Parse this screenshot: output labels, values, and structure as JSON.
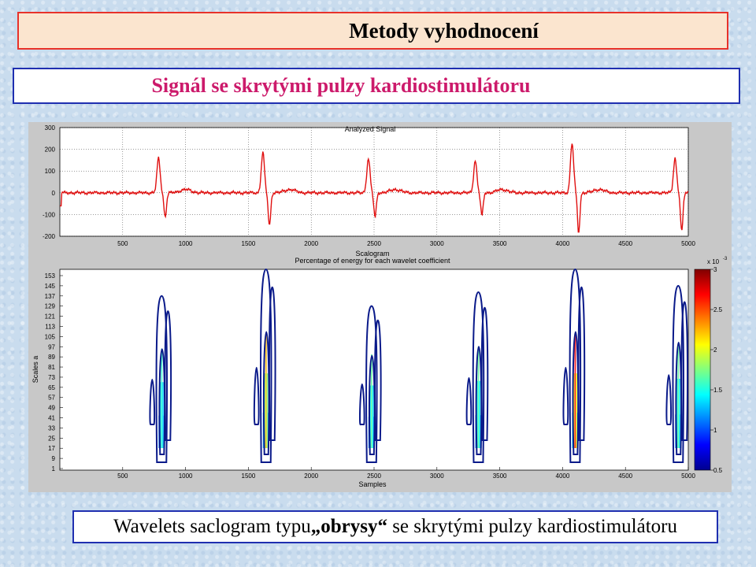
{
  "slide": {
    "title": "Metody vyhodnocení",
    "subtitle": "Signál se skrytými pulzy kardiostimulátoru",
    "caption_part1": "Wavelets saclogram typu ",
    "caption_bold": "„obrysy“",
    "caption_part2": " se skrytými pulzy kardiostimulátoru"
  },
  "chart_data": [
    {
      "type": "line",
      "title": "Analyzed Signal",
      "xlabel": "",
      "ylabel": "",
      "xlim": [
        0,
        5000
      ],
      "ylim": [
        -200,
        300
      ],
      "x_ticks": [
        500,
        1000,
        1500,
        2000,
        2500,
        3000,
        3500,
        4000,
        4500,
        5000
      ],
      "y_ticks": [
        300,
        200,
        100,
        0,
        -100,
        -200
      ],
      "baseline": 0,
      "line_color": "#e01010",
      "beats": [
        {
          "x": 810,
          "peak": 158,
          "trough": -112
        },
        {
          "x": 1640,
          "peak": 185,
          "trough": -152
        },
        {
          "x": 2480,
          "peak": 158,
          "trough": -112
        },
        {
          "x": 3330,
          "peak": 148,
          "trough": -105
        },
        {
          "x": 4100,
          "peak": 228,
          "trough": -185
        },
        {
          "x": 4920,
          "peak": 158,
          "trough": -180
        }
      ]
    },
    {
      "type": "heatmap",
      "title": "Scalogram",
      "subtitle": "Percentage of energy for each wavelet coefficient",
      "xlabel": "Samples",
      "ylabel": "Scales a",
      "xlim": [
        0,
        5000
      ],
      "x_ticks": [
        500,
        1000,
        1500,
        2000,
        2500,
        3000,
        3500,
        4000,
        4500,
        5000
      ],
      "y_ticks": [
        153,
        145,
        137,
        129,
        121,
        113,
        105,
        97,
        89,
        81,
        73,
        65,
        57,
        49,
        41,
        33,
        25,
        17,
        9,
        1
      ],
      "colorbar_multiplier": "x 10",
      "colorbar_exponent": "-3",
      "colorbar_ticks": [
        3,
        2.5,
        2,
        1.5,
        1,
        0.5
      ],
      "colorbar_range": [
        0.0005,
        0.003
      ],
      "contours": [
        {
          "x": 810,
          "top_scale": 137,
          "intensity": 0.25
        },
        {
          "x": 1640,
          "top_scale": 160,
          "intensity": 0.55
        },
        {
          "x": 2480,
          "top_scale": 129,
          "intensity": 0.3
        },
        {
          "x": 3330,
          "top_scale": 140,
          "intensity": 0.3
        },
        {
          "x": 4100,
          "top_scale": 160,
          "intensity": 0.75
        },
        {
          "x": 4920,
          "top_scale": 145,
          "intensity": 0.3
        }
      ]
    }
  ]
}
